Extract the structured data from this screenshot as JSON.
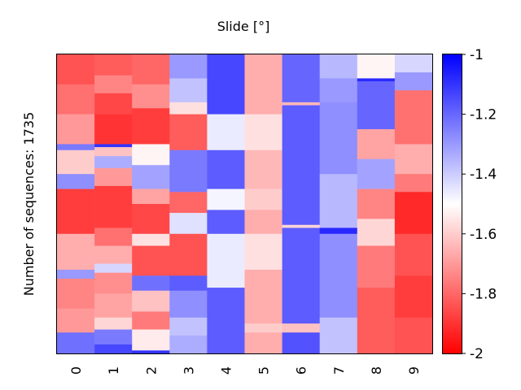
{
  "chart_data": {
    "type": "heatmap",
    "title": "Slide [°]",
    "xlabel": "",
    "ylabel": "Number of sequences: 1735",
    "x_categories": [
      "0",
      "1",
      "2",
      "3",
      "4",
      "5",
      "6",
      "7",
      "8",
      "9"
    ],
    "n_rows": 1735,
    "colorscale": {
      "min": -2,
      "max": -1,
      "min_color": "#ff0000",
      "mid_color": "#ffffff",
      "max_color": "#0000ff"
    },
    "colorbar_ticks": [
      "-1",
      "-1.2",
      "-1.4",
      "-1.6",
      "-1.8",
      "-2"
    ],
    "colorbar_tick_values": [
      -1,
      -1.2,
      -1.4,
      -1.6,
      -1.8,
      -2
    ],
    "column_segments": [
      [
        [
          0.0,
          0.07,
          -1.82
        ],
        [
          0.07,
          0.13,
          -1.74
        ],
        [
          0.13,
          0.2,
          -1.86
        ],
        [
          0.2,
          0.3,
          -1.9
        ],
        [
          0.3,
          0.31,
          -1.1
        ],
        [
          0.31,
          0.34,
          -1.62
        ],
        [
          0.34,
          0.38,
          -1.34
        ],
        [
          0.38,
          0.44,
          -1.7
        ],
        [
          0.44,
          0.58,
          -1.88
        ],
        [
          0.58,
          0.64,
          -1.78
        ],
        [
          0.64,
          0.7,
          -1.66
        ],
        [
          0.7,
          0.73,
          -1.42
        ],
        [
          0.73,
          0.8,
          -1.72
        ],
        [
          0.8,
          0.88,
          -1.68
        ],
        [
          0.88,
          0.92,
          -1.58
        ],
        [
          0.92,
          0.97,
          -1.24
        ],
        [
          0.97,
          1.0,
          -1.14
        ]
      ],
      [
        [
          0.0,
          0.1,
          -1.8
        ],
        [
          0.1,
          0.18,
          -1.72
        ],
        [
          0.18,
          0.3,
          -1.88
        ],
        [
          0.3,
          0.37,
          -1.52
        ],
        [
          0.37,
          0.45,
          -1.32
        ],
        [
          0.45,
          0.5,
          -1.68
        ],
        [
          0.5,
          0.6,
          -1.86
        ],
        [
          0.6,
          0.64,
          -1.56
        ],
        [
          0.64,
          0.74,
          -1.84
        ],
        [
          0.74,
          0.79,
          -1.22
        ],
        [
          0.79,
          0.86,
          -1.62
        ],
        [
          0.86,
          0.92,
          -1.76
        ],
        [
          0.92,
          0.99,
          -1.54
        ],
        [
          0.99,
          1.0,
          -1.1
        ]
      ],
      [
        [
          0.0,
          0.08,
          -1.3
        ],
        [
          0.08,
          0.16,
          -1.38
        ],
        [
          0.16,
          0.2,
          -1.56
        ],
        [
          0.2,
          0.32,
          -1.82
        ],
        [
          0.32,
          0.46,
          -1.24
        ],
        [
          0.46,
          0.53,
          -1.8
        ],
        [
          0.53,
          0.6,
          -1.44
        ],
        [
          0.6,
          0.74,
          -1.84
        ],
        [
          0.74,
          0.79,
          -1.18
        ],
        [
          0.79,
          0.88,
          -1.28
        ],
        [
          0.88,
          0.94,
          -1.38
        ],
        [
          0.94,
          1.0,
          -1.34
        ]
      ],
      [
        [
          0.0,
          0.2,
          -1.14
        ],
        [
          0.2,
          0.32,
          -1.46
        ],
        [
          0.32,
          0.45,
          -1.18
        ],
        [
          0.45,
          0.52,
          -1.48
        ],
        [
          0.52,
          0.6,
          -1.18
        ],
        [
          0.6,
          0.78,
          -1.46
        ],
        [
          0.78,
          1.0,
          -1.18
        ]
      ],
      [
        [
          0.0,
          0.2,
          -1.66
        ],
        [
          0.2,
          0.32,
          -1.56
        ],
        [
          0.32,
          0.45,
          -1.64
        ],
        [
          0.45,
          0.52,
          -1.6
        ],
        [
          0.52,
          0.6,
          -1.66
        ],
        [
          0.6,
          0.72,
          -1.56
        ],
        [
          0.72,
          0.9,
          -1.66
        ],
        [
          0.9,
          0.93,
          -1.6
        ],
        [
          0.93,
          1.0,
          -1.66
        ]
      ],
      [
        [
          0.0,
          0.16,
          -1.2
        ],
        [
          0.16,
          0.17,
          -1.64
        ],
        [
          0.17,
          0.57,
          -1.18
        ],
        [
          0.57,
          0.58,
          -1.58
        ],
        [
          0.58,
          0.9,
          -1.18
        ],
        [
          0.9,
          0.93,
          -1.62
        ],
        [
          0.93,
          1.0,
          -1.16
        ]
      ],
      [
        [
          0.0,
          0.08,
          -1.36
        ],
        [
          0.08,
          0.16,
          -1.3
        ],
        [
          0.16,
          0.4,
          -1.28
        ],
        [
          0.4,
          0.58,
          -1.36
        ],
        [
          0.58,
          0.6,
          -1.08
        ],
        [
          0.6,
          0.88,
          -1.28
        ],
        [
          0.88,
          1.0,
          -1.38
        ]
      ],
      [
        [
          0.0,
          0.08,
          -1.52
        ],
        [
          0.08,
          0.09,
          -1.08
        ],
        [
          0.09,
          0.25,
          -1.2
        ],
        [
          0.25,
          0.35,
          -1.68
        ],
        [
          0.35,
          0.45,
          -1.32
        ],
        [
          0.45,
          0.55,
          -1.74
        ],
        [
          0.55,
          0.64,
          -1.58
        ],
        [
          0.64,
          0.78,
          -1.76
        ],
        [
          0.78,
          1.0,
          -1.82
        ]
      ],
      [
        [
          0.0,
          0.06,
          -1.42
        ],
        [
          0.06,
          0.12,
          -1.3
        ],
        [
          0.12,
          0.3,
          -1.78
        ],
        [
          0.3,
          0.4,
          -1.66
        ],
        [
          0.4,
          0.46,
          -1.76
        ],
        [
          0.46,
          0.6,
          -1.92
        ],
        [
          0.6,
          0.74,
          -1.84
        ],
        [
          0.74,
          0.88,
          -1.88
        ],
        [
          0.88,
          1.0,
          -1.84
        ]
      ]
    ],
    "column_0_segments": [
      [
        0.0,
        0.1,
        -1.84
      ],
      [
        0.1,
        0.2,
        -1.78
      ],
      [
        0.2,
        0.3,
        -1.7
      ],
      [
        0.3,
        0.32,
        -1.24
      ],
      [
        0.32,
        0.4,
        -1.6
      ],
      [
        0.4,
        0.45,
        -1.28
      ],
      [
        0.45,
        0.6,
        -1.88
      ],
      [
        0.6,
        0.72,
        -1.66
      ],
      [
        0.72,
        0.75,
        -1.3
      ],
      [
        0.75,
        0.85,
        -1.74
      ],
      [
        0.85,
        0.93,
        -1.7
      ],
      [
        0.93,
        1.0,
        -1.22
      ]
    ]
  }
}
